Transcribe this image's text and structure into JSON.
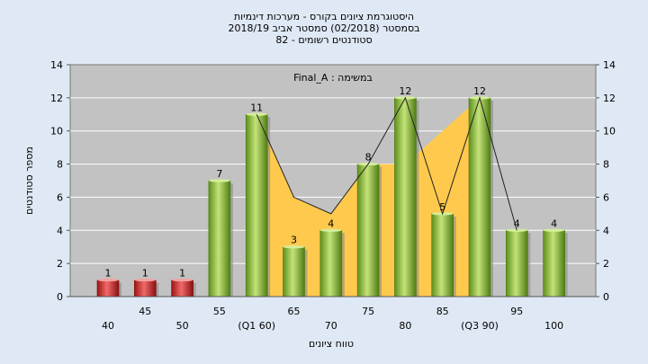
{
  "titles": [
    "היסטוגרמת ציונים בקורס - מערכות דינמיות",
    "בסמסטר  (02/2018)  סמסטר אביב 2018/19",
    "סטודנטים רשומים - 82"
  ],
  "chart_data": {
    "type": "bar",
    "annotation": "במשימה : Final_A",
    "xlabel": "טווח ציונים",
    "ylabel": "מספר סטודנטים",
    "ylim": [
      0,
      14
    ],
    "yticks": [
      0,
      2,
      4,
      6,
      8,
      10,
      12,
      14
    ],
    "grid": true,
    "categories": [
      "40",
      "45",
      "50",
      "55",
      "(Q1 60)",
      "65",
      "70",
      "75",
      "80",
      "85",
      "(Q3 90)",
      "95",
      "100"
    ],
    "values": [
      1,
      1,
      1,
      7,
      11,
      3,
      4,
      8,
      12,
      5,
      12,
      4,
      4
    ],
    "bar_colors": [
      "#d42a2a",
      "#d42a2a",
      "#d42a2a",
      "#8cbe38",
      "#8cbe38",
      "#8cbe38",
      "#8cbe38",
      "#8cbe38",
      "#8cbe38",
      "#8cbe38",
      "#8cbe38",
      "#8cbe38",
      "#8cbe38"
    ],
    "area_band": {
      "color": "#ffc94d",
      "x_from": "(Q1 60)",
      "x_to": "(Q3 90)",
      "values": [
        11,
        6,
        5,
        8,
        8,
        10,
        12
      ]
    },
    "trend_line": {
      "color": "#222222",
      "values": [
        11,
        6,
        5,
        8,
        12,
        5,
        12,
        4
      ]
    }
  }
}
